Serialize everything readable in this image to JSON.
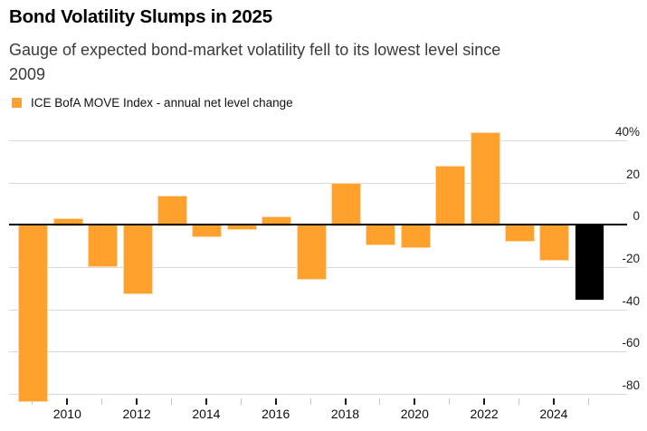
{
  "header": {
    "title": "Bond Volatility Slumps in 2025",
    "subtitle_lines": [
      "Gauge of expected bond-market volatility fell to its lowest level since",
      "2009"
    ],
    "legend": {
      "label": "ICE BofA MOVE Index - annual net level change",
      "swatch_color": "#FFA12C"
    }
  },
  "chart_data": {
    "type": "bar",
    "title": "Bond Volatility Slumps in 2025",
    "subtitle": "Gauge of expected bond-market volatility fell to its lowest level since 2009",
    "legend_entries": [
      "ICE BofA MOVE Index - annual net level change"
    ],
    "legend_position": "top-left",
    "x": [
      2009,
      2010,
      2011,
      2012,
      2013,
      2014,
      2015,
      2016,
      2017,
      2018,
      2019,
      2020,
      2021,
      2022,
      2023,
      2024,
      2025
    ],
    "values": [
      -83,
      3,
      -19,
      -32,
      14,
      -5,
      -1.5,
      4,
      -25,
      20,
      -9,
      -10,
      28,
      44,
      -7,
      -16,
      -35
    ],
    "unit": "%",
    "highlight_x": 2025,
    "colors": {
      "bar": "#FFA12C",
      "highlight": "#000000"
    },
    "yticks": [
      {
        "v": 40,
        "label": "40%"
      },
      {
        "v": 20,
        "label": "20"
      },
      {
        "v": 0,
        "label": "0"
      },
      {
        "v": -20,
        "label": "-20"
      },
      {
        "v": -40,
        "label": "-40"
      },
      {
        "v": -60,
        "label": "-60"
      },
      {
        "v": -80,
        "label": "-80"
      }
    ],
    "xtick_years_labeled": [
      2010,
      2012,
      2014,
      2016,
      2018,
      2020,
      2022,
      2024
    ],
    "ylim": [
      -90,
      48
    ],
    "grid": "horizontal",
    "yaxis_side": "right"
  }
}
